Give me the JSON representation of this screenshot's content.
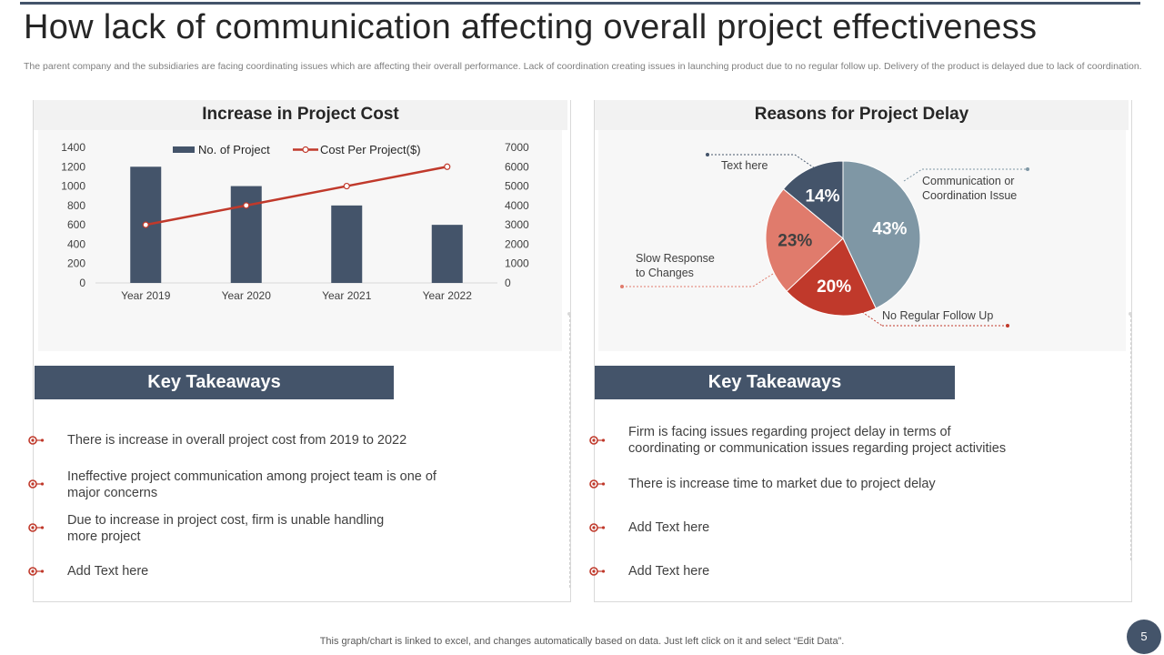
{
  "page": {
    "title": "How lack of communication affecting overall project effectiveness",
    "subtitle": "The parent company and the subsidiaries are facing coordinating issues which are affecting their overall performance. Lack of coordination creating issues in launching product due  to no regular follow up. Delivery of the product is delayed due to lack of coordination.",
    "footer_note": "This graph/chart is linked to excel,  and changes automatically based on data. Just left click on it and select “Edit Data”.",
    "page_number": "5"
  },
  "colors": {
    "dark_slate": "#44546a",
    "red": "#c0392b",
    "salmon": "#e07b6c",
    "blue_gray": "#7f97a5",
    "panel_gray": "#f2f2f2"
  },
  "left_panel": {
    "heading": "Increase in Project Cost",
    "takeaways_heading": "Key Takeaways",
    "takeaways": [
      {
        "lines": [
          "There is increase in overall project cost from 2019 to 2022"
        ]
      },
      {
        "lines": [
          "Ineffective project communication among project team is one of",
          "major concerns"
        ]
      },
      {
        "lines": [
          "Due to increase in project cost, firm is unable handling",
          "more project"
        ]
      },
      {
        "lines": [
          "Add Text here"
        ]
      }
    ]
  },
  "right_panel": {
    "heading": "Reasons for Project Delay",
    "takeaways_heading": "Key Takeaways",
    "takeaways": [
      {
        "lines": [
          "Firm is facing issues regarding project delay in terms of",
          "coordinating or communication issues regarding project activities"
        ]
      },
      {
        "lines": [
          "There is increase time to market due to project delay"
        ]
      },
      {
        "lines": [
          "Add Text here"
        ]
      },
      {
        "lines": [
          "Add Text here"
        ]
      }
    ]
  },
  "chart_data": [
    {
      "type": "bar",
      "title": "Increase in Project Cost",
      "categories": [
        "Year 2019",
        "Year 2020",
        "Year 2021",
        "Year 2022"
      ],
      "series": [
        {
          "name": "No. of Project",
          "type": "bar",
          "axis": "left",
          "values": [
            1200,
            1000,
            800,
            600
          ]
        },
        {
          "name": "Cost Per Project($)",
          "type": "line",
          "axis": "right",
          "values": [
            3000,
            4000,
            5000,
            6000
          ]
        }
      ],
      "y_left": {
        "min": 0,
        "max": 1400,
        "ticks": [
          "0",
          "200",
          "400",
          "600",
          "800",
          "1000",
          "1200",
          "1400"
        ]
      },
      "y_right": {
        "min": 0,
        "max": 7000,
        "ticks": [
          "0",
          "1000",
          "2000",
          "3000",
          "4000",
          "5000",
          "6000",
          "7000"
        ]
      },
      "legend": "top",
      "grid": false
    },
    {
      "type": "pie",
      "title": "Reasons for Project Delay",
      "slices": [
        {
          "label": "Communication or Coordination Issue",
          "label_lines": [
            "Communication  or",
            "Coordination  Issue"
          ],
          "value": 43,
          "display": "43%",
          "color": "#7f97a5"
        },
        {
          "label": "No Regular Follow Up",
          "label_lines": [
            "No Regular  Follow Up"
          ],
          "value": 20,
          "display": "20%",
          "color": "#c0392b"
        },
        {
          "label": "Slow Response to Changes",
          "label_lines": [
            "Slow Response",
            "to Changes"
          ],
          "value": 23,
          "display": "23%",
          "color": "#e07b6c"
        },
        {
          "label": "Text here",
          "label_lines": [
            "Text here"
          ],
          "value": 14,
          "display": "14%",
          "color": "#44546a"
        }
      ]
    }
  ]
}
